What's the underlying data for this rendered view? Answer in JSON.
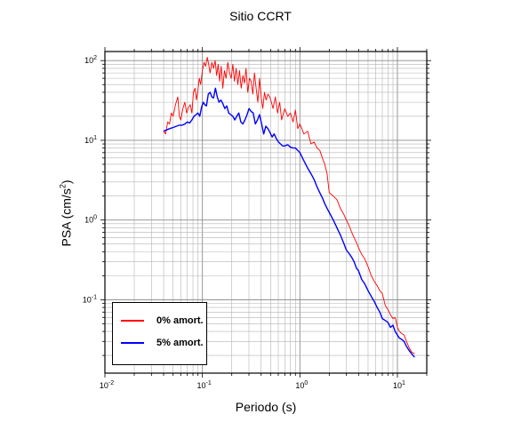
{
  "chart_data": {
    "type": "line",
    "title": "Sitio CCRT",
    "xlabel": "Periodo (s)",
    "ylabel": {
      "main": "PSA (cm/s",
      "sup": "2",
      "end": ")"
    },
    "xscale": "log",
    "yscale": "log",
    "xlim": [
      0.01,
      20
    ],
    "ylim": [
      0.012,
      130
    ],
    "grid": true,
    "legend_position": "bottom-left",
    "x_ticks": [
      {
        "base": "10",
        "exp": "-2"
      },
      {
        "base": "10",
        "exp": "-1"
      },
      {
        "base": "10",
        "exp": "0"
      },
      {
        "base": "10",
        "exp": "1"
      }
    ],
    "y_ticks": [
      {
        "base": "10",
        "exp": "-1"
      },
      {
        "base": "10",
        "exp": "0"
      },
      {
        "base": "10",
        "exp": "1"
      },
      {
        "base": "10",
        "exp": "2"
      }
    ],
    "series": [
      {
        "name": "0% amort.",
        "color": "#ff0000",
        "x": [
          0.04,
          0.042,
          0.044,
          0.046,
          0.048,
          0.05,
          0.053,
          0.056,
          0.058,
          0.06,
          0.063,
          0.066,
          0.069,
          0.072,
          0.075,
          0.078,
          0.081,
          0.084,
          0.087,
          0.09,
          0.093,
          0.096,
          0.1,
          0.104,
          0.108,
          0.112,
          0.116,
          0.12,
          0.125,
          0.13,
          0.135,
          0.14,
          0.145,
          0.15,
          0.156,
          0.162,
          0.168,
          0.175,
          0.182,
          0.19,
          0.197,
          0.205,
          0.213,
          0.222,
          0.231,
          0.24,
          0.25,
          0.26,
          0.27,
          0.28,
          0.292,
          0.304,
          0.316,
          0.329,
          0.342,
          0.356,
          0.37,
          0.385,
          0.4,
          0.416,
          0.433,
          0.45,
          0.47,
          0.49,
          0.51,
          0.53,
          0.56,
          0.59,
          0.62,
          0.65,
          0.7,
          0.75,
          0.8,
          0.85,
          0.9,
          0.95,
          1.0,
          1.1,
          1.2,
          1.3,
          1.4,
          1.5,
          1.6,
          1.7,
          1.8,
          1.9,
          2.0,
          2.2,
          2.4,
          2.6,
          2.8,
          3.0,
          3.2,
          3.4,
          3.6,
          3.8,
          4.0,
          4.3,
          4.6,
          5.0,
          5.4,
          5.8,
          6.2,
          6.6,
          7.0,
          7.5,
          8.0,
          8.5,
          9.0,
          9.5,
          10.0,
          10.5,
          11.0,
          11.7,
          12.4,
          13.2,
          14.0,
          15.0
        ],
        "values": [
          13,
          12,
          17,
          16,
          22,
          20,
          28,
          35,
          20,
          18,
          25,
          30,
          22,
          26,
          28,
          22,
          40,
          45,
          32,
          42,
          60,
          50,
          75,
          95,
          85,
          110,
          90,
          70,
          95,
          80,
          100,
          65,
          90,
          55,
          85,
          45,
          75,
          60,
          95,
          70,
          60,
          90,
          55,
          80,
          50,
          75,
          45,
          65,
          52,
          80,
          40,
          60,
          55,
          38,
          70,
          45,
          30,
          60,
          35,
          25,
          40,
          32,
          38,
          35,
          30,
          25,
          35,
          22,
          30,
          18,
          25,
          20,
          22,
          17,
          24,
          14,
          16,
          12,
          13,
          9.0,
          9.5,
          8.0,
          7.5,
          6.0,
          5.0,
          3.8,
          2.2,
          2.0,
          1.8,
          1.4,
          1.2,
          1.0,
          0.85,
          0.7,
          0.6,
          0.52,
          0.45,
          0.37,
          0.33,
          0.26,
          0.2,
          0.17,
          0.15,
          0.13,
          0.12,
          0.085,
          0.075,
          0.065,
          0.058,
          0.06,
          0.045,
          0.04,
          0.038,
          0.036,
          0.03,
          0.025,
          0.022,
          0.021
        ]
      },
      {
        "name": "5% amort.",
        "color": "#0000ff",
        "x": [
          0.04,
          0.043,
          0.046,
          0.05,
          0.054,
          0.058,
          0.062,
          0.066,
          0.07,
          0.074,
          0.078,
          0.082,
          0.086,
          0.09,
          0.094,
          0.098,
          0.102,
          0.106,
          0.11,
          0.115,
          0.12,
          0.125,
          0.13,
          0.136,
          0.142,
          0.148,
          0.155,
          0.162,
          0.17,
          0.178,
          0.186,
          0.195,
          0.205,
          0.215,
          0.225,
          0.236,
          0.248,
          0.26,
          0.273,
          0.287,
          0.301,
          0.316,
          0.332,
          0.349,
          0.367,
          0.385,
          0.405,
          0.425,
          0.447,
          0.47,
          0.494,
          0.519,
          0.545,
          0.573,
          0.602,
          0.633,
          0.665,
          0.7,
          0.75,
          0.8,
          0.85,
          0.9,
          0.95,
          1.0,
          1.1,
          1.2,
          1.3,
          1.4,
          1.5,
          1.6,
          1.7,
          1.8,
          1.9,
          2.0,
          2.2,
          2.4,
          2.6,
          2.8,
          3.0,
          3.2,
          3.4,
          3.6,
          3.8,
          4.0,
          4.3,
          4.6,
          5.0,
          5.4,
          5.8,
          6.2,
          6.6,
          7.0,
          7.5,
          8.0,
          8.5,
          9.0,
          9.5,
          10.0,
          10.5,
          11.0,
          11.7,
          12.4,
          13.2,
          14.0,
          15.0
        ],
        "values": [
          13,
          13.5,
          14,
          14.5,
          15,
          15.5,
          15.5,
          16,
          17,
          16.5,
          18,
          20,
          21,
          22,
          20,
          26,
          30,
          28,
          27,
          38,
          40,
          35,
          34,
          45,
          35,
          30,
          32,
          29,
          25,
          27,
          22,
          21,
          20,
          18,
          20,
          22,
          17,
          16,
          18,
          21,
          25,
          23,
          22,
          16,
          18,
          21,
          16,
          12,
          15,
          14,
          12.5,
          11,
          12,
          10.5,
          9.5,
          9.0,
          8.5,
          8.5,
          8.8,
          8.2,
          8.0,
          8.0,
          7.5,
          7.0,
          5.5,
          4.5,
          3.8,
          3.2,
          2.6,
          2.2,
          1.9,
          1.6,
          1.4,
          1.25,
          1.0,
          0.8,
          0.65,
          0.52,
          0.42,
          0.38,
          0.34,
          0.3,
          0.25,
          0.23,
          0.18,
          0.16,
          0.13,
          0.11,
          0.095,
          0.08,
          0.07,
          0.058,
          0.055,
          0.052,
          0.045,
          0.048,
          0.04,
          0.036,
          0.033,
          0.032,
          0.03,
          0.026,
          0.023,
          0.021,
          0.019
        ]
      }
    ]
  }
}
